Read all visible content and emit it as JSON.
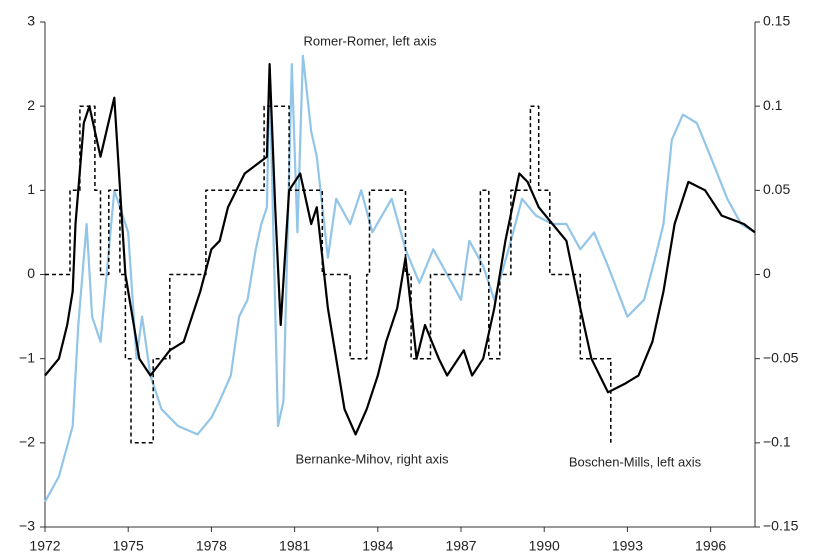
{
  "chart_data": {
    "type": "line",
    "xlim": [
      1972,
      1997.6
    ],
    "xticks": [
      1972,
      1975,
      1978,
      1981,
      1984,
      1987,
      1990,
      1993,
      1996
    ],
    "ylim": [
      -3,
      3
    ],
    "yticks": [
      {
        "value": -3,
        "label": "−3"
      },
      {
        "value": -2,
        "label": "−2"
      },
      {
        "value": -1,
        "label": "−1"
      },
      0,
      1,
      2,
      3
    ],
    "y2lim": [
      -0.15,
      0.15
    ],
    "y2ticks": [
      {
        "value": -0.15,
        "label": "−0.15"
      },
      {
        "value": -0.1,
        "label": "−0.1"
      },
      {
        "value": -0.05,
        "label": "−0.05"
      },
      0,
      0.05,
      0.1,
      0.15
    ],
    "series": [
      {
        "name": "Romer-Romer, left axis",
        "color": "#92c5e8",
        "style": "solid",
        "x": [
          1972,
          1972.5,
          1973,
          1973.2,
          1973.5,
          1973.7,
          1974,
          1974.5,
          1975,
          1975.3,
          1975.5,
          1975.8,
          1976.2,
          1976.8,
          1977.5,
          1978,
          1978.3,
          1978.7,
          1979,
          1979.3,
          1979.6,
          1979.8,
          1980,
          1980.1,
          1980.4,
          1980.6,
          1980.9,
          1981.1,
          1981.3,
          1981.6,
          1981.8,
          1982.2,
          1982.5,
          1983,
          1983.4,
          1983.8,
          1984.5,
          1985,
          1985.5,
          1986,
          1986.5,
          1987,
          1987.3,
          1987.8,
          1988.2,
          1988.8,
          1989.2,
          1989.7,
          1990.3,
          1990.8,
          1991.3,
          1991.8,
          1992.3,
          1993,
          1993.6,
          1994,
          1994.3,
          1994.6,
          1995,
          1995.5,
          1996,
          1996.6,
          1997.1,
          1997.6
        ],
        "values": [
          -2.7,
          -2.4,
          -1.8,
          -0.6,
          0.6,
          -0.5,
          -0.8,
          1.0,
          0.5,
          -1.0,
          -0.5,
          -1.2,
          -1.6,
          -1.8,
          -1.9,
          -1.7,
          -1.5,
          -1.2,
          -0.5,
          -0.3,
          0.3,
          0.6,
          0.8,
          2.4,
          -1.8,
          -1.5,
          2.5,
          0.5,
          2.6,
          1.7,
          1.4,
          0.2,
          0.9,
          0.6,
          1.0,
          0.5,
          0.9,
          0.3,
          -0.1,
          0.3,
          0.0,
          -0.3,
          0.4,
          0.1,
          -0.3,
          0.4,
          0.9,
          0.7,
          0.6,
          0.6,
          0.3,
          0.5,
          0.1,
          -0.5,
          -0.3,
          0.2,
          0.6,
          1.6,
          1.9,
          1.8,
          1.4,
          0.9,
          0.6,
          0.5
        ]
      },
      {
        "name": "Bernanke-Mihov, right axis",
        "color": "#000000",
        "style": "solid",
        "axis": "y2",
        "x": [
          1972,
          1972.5,
          1972.8,
          1973,
          1973.1,
          1973.4,
          1973.6,
          1974,
          1974.5,
          1974.9,
          1975.2,
          1975.4,
          1975.8,
          1976.5,
          1977,
          1977.6,
          1978,
          1978.3,
          1978.6,
          1979.2,
          1979.6,
          1980,
          1980.1,
          1980.3,
          1980.5,
          1980.8,
          1981.2,
          1981.6,
          1981.8,
          1982.2,
          1982.5,
          1982.8,
          1983.2,
          1983.6,
          1984,
          1984.3,
          1984.7,
          1985,
          1985.4,
          1985.7,
          1986.2,
          1986.5,
          1987.1,
          1987.4,
          1987.8,
          1988.2,
          1988.6,
          1989.1,
          1989.4,
          1989.8,
          1990.3,
          1990.8,
          1991.3,
          1991.7,
          1992.3,
          1992.9,
          1993.4,
          1993.9,
          1994.3,
          1994.7,
          1995.2,
          1995.8,
          1996.4,
          1997.2,
          1997.6
        ],
        "values": [
          -0.06,
          -0.05,
          -0.03,
          -0.01,
          0.03,
          0.09,
          0.1,
          0.07,
          0.105,
          0.0,
          -0.03,
          -0.05,
          -0.06,
          -0.045,
          -0.04,
          -0.01,
          0.015,
          0.02,
          0.04,
          0.06,
          0.065,
          0.07,
          0.125,
          0.04,
          -0.03,
          0.05,
          0.06,
          0.03,
          0.04,
          -0.02,
          -0.05,
          -0.08,
          -0.095,
          -0.08,
          -0.06,
          -0.04,
          -0.02,
          0.01,
          -0.05,
          -0.03,
          -0.05,
          -0.06,
          -0.045,
          -0.06,
          -0.05,
          -0.02,
          0.02,
          0.06,
          0.055,
          0.04,
          0.03,
          0.02,
          -0.02,
          -0.05,
          -0.07,
          -0.065,
          -0.06,
          -0.04,
          -0.01,
          0.03,
          0.055,
          0.05,
          0.035,
          0.03,
          0.025
        ]
      },
      {
        "name": "Boschen-Mills, left axis",
        "color": "#000000",
        "style": "dashed",
        "x": [
          1972,
          1972.9,
          1972.9,
          1973.26,
          1973.26,
          1973.8,
          1973.8,
          1974.0,
          1974.0,
          1974.3,
          1974.3,
          1974.7,
          1974.7,
          1974.9,
          1974.9,
          1975.1,
          1975.1,
          1975.9,
          1975.9,
          1976.5,
          1976.5,
          1977.8,
          1977.8,
          1979.9,
          1979.9,
          1980.8,
          1980.8,
          1982.0,
          1982.0,
          1983.0,
          1983.0,
          1983.6,
          1983.6,
          1983.7,
          1983.7,
          1985.0,
          1985.0,
          1985.2,
          1985.2,
          1985.9,
          1985.9,
          1987.7,
          1987.7,
          1988.0,
          1988.0,
          1988.4,
          1988.4,
          1988.8,
          1988.8,
          1989.5,
          1989.5,
          1989.8,
          1989.8,
          1990.2,
          1990.2,
          1991.3,
          1991.3,
          1992.4,
          1992.4
        ],
        "values": [
          0,
          0,
          1,
          1,
          2,
          2,
          1,
          1,
          0,
          0,
          1,
          1,
          0,
          0,
          -1,
          -1,
          -2,
          -2,
          -1,
          -1,
          0,
          0,
          1,
          1,
          2,
          2,
          1,
          1,
          0,
          0,
          -1,
          -1,
          0,
          0,
          1,
          1,
          0,
          0,
          -1,
          -1,
          0,
          0,
          1,
          1,
          -1,
          -1,
          0,
          0,
          1,
          1,
          2,
          2,
          1,
          1,
          0,
          0,
          -1,
          -1,
          -2
        ]
      }
    ]
  }
}
